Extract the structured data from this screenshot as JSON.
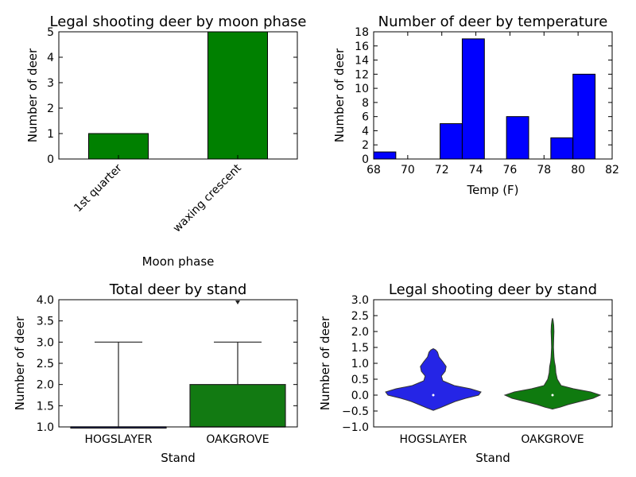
{
  "chart_data": [
    {
      "type": "bar",
      "title": "Legal shooting deer by moon phase",
      "xlabel": "Moon phase",
      "ylabel": "Number of deer",
      "categories": [
        "1st quarter",
        "waxing crescent"
      ],
      "values": [
        1,
        5
      ],
      "ylim": [
        0,
        5
      ],
      "yticks": [
        "0",
        "1",
        "2",
        "3",
        "4",
        "5"
      ],
      "color": "#008000"
    },
    {
      "type": "histogram",
      "title": "Number of deer by temperature",
      "xlabel": "Temp (F)",
      "ylabel": "Number of deer",
      "xlim": [
        68,
        82
      ],
      "ylim": [
        0,
        18
      ],
      "xticks": [
        "68",
        "70",
        "72",
        "74",
        "76",
        "78",
        "80",
        "82"
      ],
      "yticks": [
        "0",
        "2",
        "4",
        "6",
        "8",
        "10",
        "12",
        "14",
        "16",
        "18"
      ],
      "bins": [
        {
          "x0": 68.0,
          "x1": 69.3,
          "count": 1
        },
        {
          "x0": 69.3,
          "x1": 70.6,
          "count": 0
        },
        {
          "x0": 70.6,
          "x1": 71.9,
          "count": 0
        },
        {
          "x0": 71.9,
          "x1": 73.2,
          "count": 5
        },
        {
          "x0": 73.2,
          "x1": 74.5,
          "count": 17
        },
        {
          "x0": 74.5,
          "x1": 75.8,
          "count": 0
        },
        {
          "x0": 75.8,
          "x1": 77.1,
          "count": 6
        },
        {
          "x0": 77.1,
          "x1": 78.4,
          "count": 0
        },
        {
          "x0": 78.4,
          "x1": 79.7,
          "count": 3
        },
        {
          "x0": 79.7,
          "x1": 81.0,
          "count": 12
        }
      ],
      "color": "#0000ff"
    },
    {
      "type": "box",
      "title": "Total deer by stand",
      "xlabel": "Stand",
      "ylabel": "Number of deer",
      "ylim": [
        1.0,
        4.0
      ],
      "yticks": [
        "1.0",
        "1.5",
        "2.0",
        "2.5",
        "3.0",
        "3.5",
        "4.0"
      ],
      "groups": [
        {
          "name": "HOGSLAYER",
          "q1": 1.0,
          "median": 1.0,
          "q3": 1.0,
          "whisker_low": 1.0,
          "whisker_high": 3.0,
          "outliers": [],
          "color": "#1f2fd8"
        },
        {
          "name": "OAKGROVE",
          "q1": 1.0,
          "median": 1.0,
          "q3": 2.0,
          "whisker_low": 1.0,
          "whisker_high": 3.0,
          "outliers": [
            4.0
          ],
          "color": "#127a12"
        }
      ]
    },
    {
      "type": "violin",
      "title": "Legal shooting deer by stand",
      "xlabel": "Stand",
      "ylabel": "Number of deer",
      "ylim": [
        -1.0,
        3.0
      ],
      "yticks": [
        "−1.0",
        "−0.5",
        "0.0",
        "0.5",
        "1.0",
        "1.5",
        "2.0",
        "2.5",
        "3.0"
      ],
      "groups": [
        {
          "name": "HOGSLAYER",
          "median": 0.0,
          "color": "#2525e6",
          "profile": [
            [
              -0.48,
              0
            ],
            [
              -0.45,
              0.05
            ],
            [
              -0.4,
              0.14
            ],
            [
              -0.3,
              0.3
            ],
            [
              -0.2,
              0.46
            ],
            [
              -0.1,
              0.68
            ],
            [
              0.0,
              0.95
            ],
            [
              0.1,
              1.0
            ],
            [
              0.2,
              0.78
            ],
            [
              0.3,
              0.44
            ],
            [
              0.45,
              0.2
            ],
            [
              0.6,
              0.17
            ],
            [
              0.75,
              0.25
            ],
            [
              0.9,
              0.27
            ],
            [
              1.05,
              0.2
            ],
            [
              1.2,
              0.12
            ],
            [
              1.35,
              0.09
            ],
            [
              1.42,
              0.05
            ],
            [
              1.46,
              0
            ]
          ]
        },
        {
          "name": "OAKGROVE",
          "median": 0.0,
          "color": "#0f7a0f",
          "profile": [
            [
              -0.44,
              0
            ],
            [
              -0.42,
              0.05
            ],
            [
              -0.38,
              0.16
            ],
            [
              -0.3,
              0.32
            ],
            [
              -0.2,
              0.58
            ],
            [
              -0.1,
              0.85
            ],
            [
              0.0,
              1.0
            ],
            [
              0.1,
              0.8
            ],
            [
              0.2,
              0.44
            ],
            [
              0.3,
              0.18
            ],
            [
              0.5,
              0.1
            ],
            [
              0.7,
              0.07
            ],
            [
              0.9,
              0.06
            ],
            [
              1.05,
              0.04
            ],
            [
              1.2,
              0.03
            ],
            [
              1.5,
              0.02
            ],
            [
              1.8,
              0.025
            ],
            [
              2.0,
              0.03
            ],
            [
              2.2,
              0.025
            ],
            [
              2.35,
              0.012
            ],
            [
              2.42,
              0
            ]
          ]
        }
      ]
    }
  ]
}
